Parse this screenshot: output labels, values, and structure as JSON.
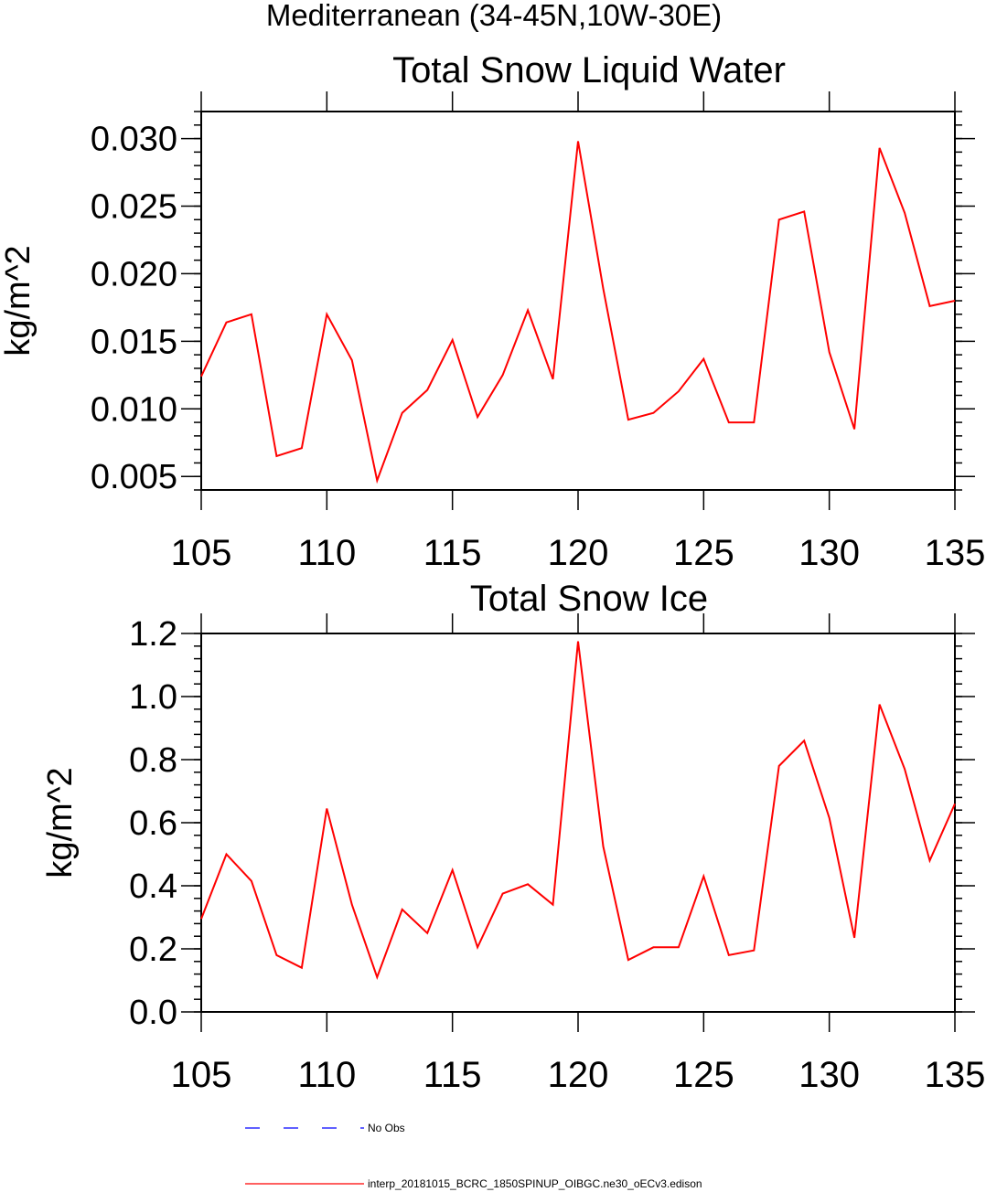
{
  "header": {
    "region": "Mediterranean (34-45N,10W-30E)"
  },
  "chart_data": [
    {
      "type": "line",
      "title": "Total Snow Liquid Water",
      "ylabel": "kg/m^2",
      "xlabel": "",
      "xlim": [
        105,
        135
      ],
      "ylim": [
        0.004,
        0.032
      ],
      "x_ticks": [
        105,
        110,
        115,
        120,
        125,
        130,
        135
      ],
      "x_tick_labels": [
        "105",
        "110",
        "115",
        "120",
        "125",
        "130",
        "135"
      ],
      "y_ticks": [
        0.005,
        0.01,
        0.015,
        0.02,
        0.025,
        0.03
      ],
      "y_tick_labels": [
        "0.005",
        "0.010",
        "0.015",
        "0.020",
        "0.025",
        "0.030"
      ],
      "x": [
        105,
        106,
        107,
        108,
        109,
        110,
        111,
        112,
        113,
        114,
        115,
        116,
        117,
        118,
        119,
        120,
        121,
        122,
        123,
        124,
        125,
        126,
        127,
        128,
        129,
        130,
        131,
        132,
        133,
        134,
        135
      ],
      "series": [
        {
          "name": "interp_20181015_BCRC_1850SPINUP_OIBGC.ne30_oECv3.edison",
          "color": "#ff0000",
          "values": [
            0.0124,
            0.0164,
            0.017,
            0.0065,
            0.0071,
            0.017,
            0.0136,
            0.0047,
            0.0097,
            0.0114,
            0.0151,
            0.0094,
            0.0125,
            0.0173,
            0.0122,
            0.0298,
            0.0189,
            0.0092,
            0.0097,
            0.0113,
            0.0137,
            0.009,
            0.009,
            0.024,
            0.0246,
            0.0142,
            0.0085,
            0.0293,
            0.0245,
            0.0176,
            0.018
          ]
        }
      ]
    },
    {
      "type": "line",
      "title": "Total Snow Ice",
      "ylabel": "kg/m^2",
      "xlabel": "",
      "xlim": [
        105,
        135
      ],
      "ylim": [
        0.0,
        1.2
      ],
      "x_ticks": [
        105,
        110,
        115,
        120,
        125,
        130,
        135
      ],
      "x_tick_labels": [
        "105",
        "110",
        "115",
        "120",
        "125",
        "130",
        "135"
      ],
      "y_ticks": [
        0.0,
        0.2,
        0.4,
        0.6,
        0.8,
        1.0,
        1.2
      ],
      "y_tick_labels": [
        "0.0",
        "0.2",
        "0.4",
        "0.6",
        "0.8",
        "1.0",
        "1.2"
      ],
      "x": [
        105,
        106,
        107,
        108,
        109,
        110,
        111,
        112,
        113,
        114,
        115,
        116,
        117,
        118,
        119,
        120,
        121,
        122,
        123,
        124,
        125,
        126,
        127,
        128,
        129,
        130,
        131,
        132,
        133,
        134,
        135
      ],
      "series": [
        {
          "name": "interp_20181015_BCRC_1850SPINUP_OIBGC.ne30_oECv3.edison",
          "color": "#ff0000",
          "values": [
            0.295,
            0.5,
            0.415,
            0.18,
            0.14,
            0.645,
            0.34,
            0.11,
            0.325,
            0.25,
            0.45,
            0.205,
            0.375,
            0.405,
            0.34,
            1.175,
            0.525,
            0.165,
            0.205,
            0.205,
            0.43,
            0.18,
            0.195,
            0.78,
            0.86,
            0.615,
            0.235,
            0.975,
            0.77,
            0.48,
            0.66
          ]
        }
      ]
    }
  ],
  "legend": {
    "entries": [
      {
        "label": "No Obs",
        "color": "#0000ff",
        "style": "dashed"
      },
      {
        "label": "interp_20181015_BCRC_1850SPINUP_OIBGC.ne30_oECv3.edison",
        "color": "#ff0000",
        "style": "solid"
      }
    ]
  }
}
